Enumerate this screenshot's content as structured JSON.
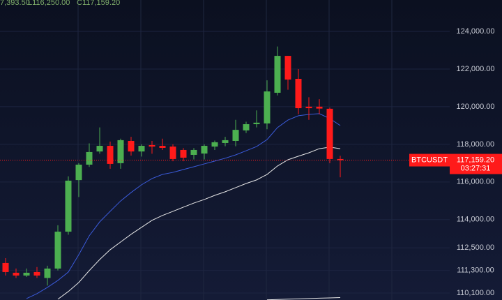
{
  "chart_data": {
    "type": "candlestick",
    "symbol": "BTCUSDT",
    "header": [
      "7,393.50",
      "L116,250.00",
      "C117,159.20"
    ],
    "categories": [
      null,
      null,
      null,
      null,
      null,
      null,
      null,
      null,
      null,
      null,
      null,
      null,
      null,
      null,
      null,
      null,
      null,
      null,
      null,
      null,
      null,
      null,
      null,
      null,
      null,
      null,
      null,
      null,
      null,
      null,
      null,
      null,
      null
    ],
    "open": [
      111696,
      111177,
      111029,
      111214,
      110900,
      111400,
      113360,
      116100,
      116920,
      117620,
      117920,
      117000,
      118180,
      117620,
      117960,
      117920,
      117880,
      117700,
      117440,
      117510,
      117880,
      118070,
      118180,
      118740,
      119070,
      119110,
      120740,
      122700,
      121480,
      120000,
      120000,
      119890,
      117220
    ],
    "high": [
      111955,
      111400,
      111400,
      111480,
      111550,
      113700,
      116300,
      117000,
      118050,
      118900,
      118150,
      118300,
      118400,
      118000,
      118180,
      118300,
      118000,
      117800,
      117800,
      118000,
      118200,
      118400,
      119300,
      119200,
      119800,
      121400,
      123200,
      122700,
      122000,
      120500,
      120400,
      119950,
      117393.5
    ],
    "low": [
      111029,
      110900,
      110950,
      110900,
      110500,
      111300,
      113200,
      115200,
      116800,
      117500,
      116700,
      116700,
      117400,
      117350,
      117500,
      117700,
      117100,
      117100,
      117200,
      117200,
      117700,
      117900,
      117900,
      118600,
      118900,
      118800,
      120600,
      120900,
      119600,
      119300,
      119600,
      117000,
      116250
    ],
    "close": [
      111214,
      111029,
      111177,
      111029,
      111400,
      113360,
      116070,
      116920,
      117590,
      117920,
      116960,
      118220,
      117620,
      117920,
      117880,
      117810,
      117220,
      117290,
      117700,
      117920,
      118110,
      118220,
      118770,
      119070,
      119150,
      120810,
      122700,
      121440,
      119920,
      119920,
      119900,
      117220,
      117159.2
    ],
    "up_color": "#4caf50",
    "down_color": "#ff1a1a",
    "lines": [
      {
        "color": "#3b5bdb",
        "values": [
          null,
          null,
          109806,
          110065,
          110400,
          110770,
          111214,
          112140,
          113140,
          113880,
          114440,
          114990,
          115440,
          115850,
          116180,
          116400,
          116510,
          116660,
          116810,
          116960,
          117110,
          117260,
          117440,
          117660,
          117880,
          118250,
          118890,
          119290,
          119520,
          119590,
          119630,
          119370,
          119000
        ]
      },
      {
        "color": "#e8e8e8",
        "values": [
          null,
          null,
          null,
          null,
          null,
          109770,
          110180,
          110660,
          111290,
          111880,
          112400,
          112810,
          113220,
          113590,
          113960,
          114220,
          114440,
          114660,
          114880,
          115070,
          115290,
          115480,
          115700,
          115920,
          116110,
          116400,
          116850,
          117180,
          117370,
          117550,
          117770,
          117850,
          117770
        ]
      },
      {
        "color": "#e8e8e8",
        "values": [
          null,
          null,
          null,
          null,
          null,
          null,
          null,
          null,
          null,
          null,
          null,
          null,
          null,
          null,
          null,
          null,
          null,
          null,
          null,
          null,
          null,
          null,
          null,
          null,
          null,
          109740,
          109757,
          109774,
          109791,
          109808,
          109825,
          109842,
          109860
        ]
      }
    ],
    "last_price": 117159.2,
    "last_price_label": "117,159.20",
    "countdown": "03:27:31",
    "ylim": [
      109729,
      125668
    ],
    "yticks": [
      {
        "value": 110100,
        "label": "110,100.00"
      },
      {
        "value": 111300,
        "label": "111,300.00"
      },
      {
        "value": 112500,
        "label": "112,500.00"
      },
      {
        "value": 114000,
        "label": "114,000.00"
      },
      {
        "value": 116000,
        "label": "116,000.00"
      },
      {
        "value": 118000,
        "label": "118,000.00"
      },
      {
        "value": 120000,
        "label": "120,000.00"
      },
      {
        "value": 122000,
        "label": "122,000.00"
      },
      {
        "value": 124000,
        "label": "124,000.00"
      }
    ],
    "grid": true
  }
}
